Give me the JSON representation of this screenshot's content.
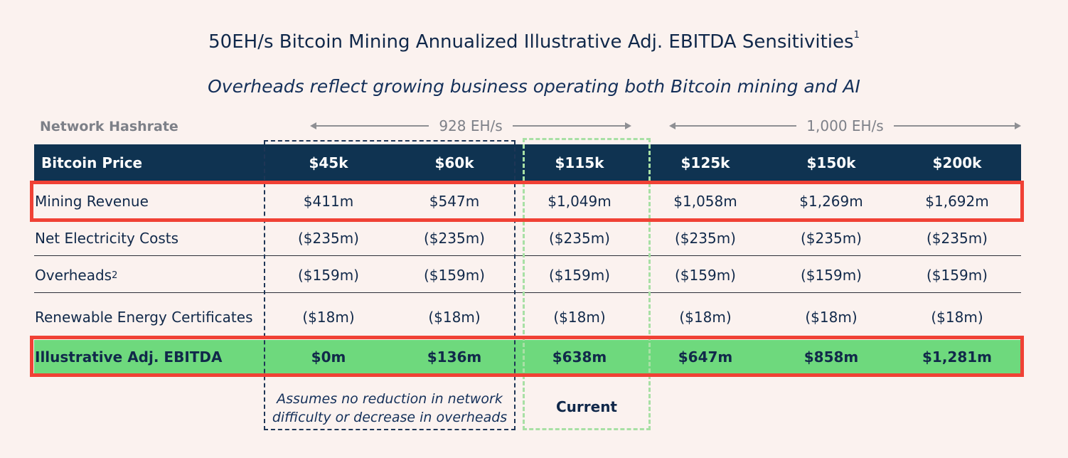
{
  "title": "50EH/s Bitcoin Mining Annualized Illustrative Adj. EBITDA Sensitivities",
  "title_footnote": "1",
  "subtitle": "Overheads reflect growing business operating both Bitcoin mining and AI",
  "hashrate": {
    "label": "Network Hashrate",
    "groups": [
      "928 EH/s",
      "1,000 EH/s"
    ]
  },
  "table": {
    "header_label": "Bitcoin Price",
    "columns": [
      "$45k",
      "$60k",
      "$115k",
      "$125k",
      "$150k",
      "$200k"
    ],
    "rows": [
      {
        "label": "Mining Revenue",
        "sup": "",
        "values": [
          "$411m",
          "$547m",
          "$1,049m",
          "$1,058m",
          "$1,269m",
          "$1,692m"
        ]
      },
      {
        "label": "Net Electricity Costs",
        "sup": "",
        "values": [
          "($235m)",
          "($235m)",
          "($235m)",
          "($235m)",
          "($235m)",
          "($235m)"
        ]
      },
      {
        "label": "Overheads",
        "sup": "2",
        "values": [
          "($159m)",
          "($159m)",
          "($159m)",
          "($159m)",
          "($159m)",
          "($159m)"
        ]
      },
      {
        "label": "Renewable Energy Certificates",
        "sup": "",
        "values": [
          "($18m)",
          "($18m)",
          "($18m)",
          "($18m)",
          "($18m)",
          "($18m)"
        ]
      },
      {
        "label": "Illustrative Adj. EBITDA",
        "sup": "",
        "values": [
          "$0m",
          "$136m",
          "$638m",
          "$647m",
          "$858m",
          "$1,281m"
        ]
      }
    ]
  },
  "notes": {
    "assumption_line1": "Assumes no reduction in network",
    "assumption_line2": "difficulty or decrease in overheads",
    "current": "Current"
  },
  "colors": {
    "header": "#0f3351",
    "highlight_green": "#6ed97d",
    "highlight_red": "#f04135",
    "background": "#fbf2ef"
  }
}
